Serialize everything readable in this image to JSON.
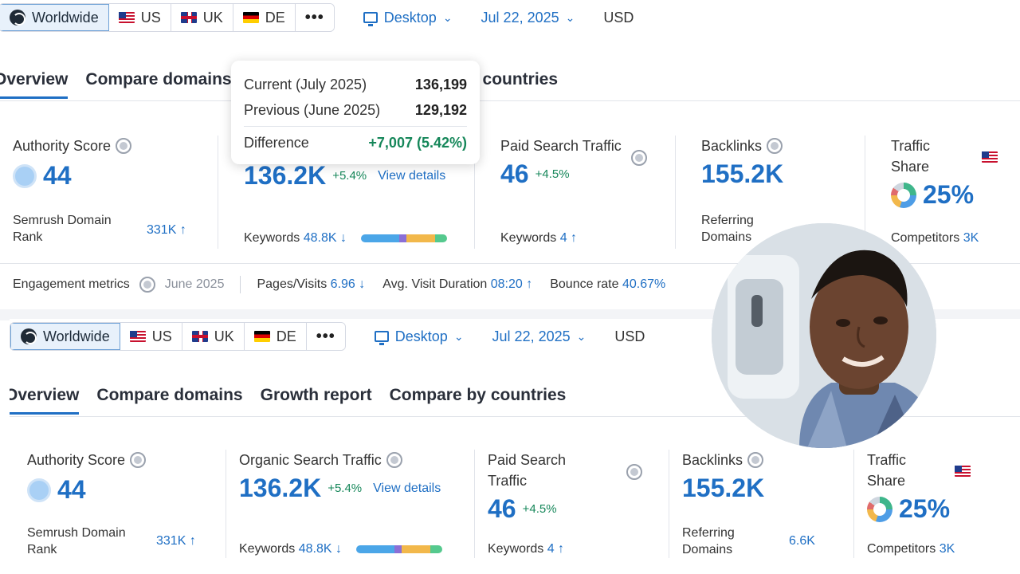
{
  "filters": {
    "worldwide": "Worldwide",
    "us": "US",
    "uk": "UK",
    "de": "DE",
    "more": "•••",
    "device": "Desktop",
    "date": "Jul 22, 2025",
    "currency": "USD"
  },
  "tabs": {
    "overview": "Overview",
    "compare_domains": "Compare domains",
    "growth_report": "Growth report",
    "compare_by_countries": "Compare by countries",
    "partial_countries": "y countries"
  },
  "tooltip": {
    "current_label": "Current (July 2025)",
    "current_value": "136,199",
    "previous_label": "Previous (June 2025)",
    "previous_value": "129,192",
    "difference_label": "Difference",
    "difference_value": "+7,007 (5.42%)"
  },
  "authority": {
    "title": "Authority Score",
    "value": "44",
    "rank_label": "Semrush Domain Rank",
    "rank_value": "331K ↑"
  },
  "organic": {
    "title": "Organic Search Traffic",
    "value": "136.2K",
    "delta": "+5.4%",
    "link": "View details",
    "keywords_label": "Keywords",
    "keywords_value": "48.8K ↓"
  },
  "paid": {
    "title": "Paid Search Traffic",
    "value": "46",
    "delta": "+4.5%",
    "keywords_label": "Keywords",
    "keywords_value": "4 ↑"
  },
  "backlinks": {
    "title": "Backlinks",
    "value": "155.2K",
    "referring_label": "Referring Domains",
    "referring_value": "6.6K"
  },
  "traffic_share": {
    "title": "Traffic Share",
    "value": "25%",
    "competitors_label": "Competitors",
    "competitors_value": "3K"
  },
  "engagement": {
    "label": "Engagement metrics",
    "period": "June 2025",
    "pages_label": "Pages/Visits",
    "pages_value": "6.96 ↓",
    "duration_label": "Avg. Visit Duration",
    "duration_value": "08:20 ↑",
    "bounce_label": "Bounce rate",
    "bounce_value": "40.67%"
  },
  "colors": {
    "accent": "#1f6fc4",
    "positive": "#16875a",
    "negative": "#d43a3a",
    "keywords_bar": [
      "#4ba6e8",
      "#8b6fd6",
      "#f2b84b",
      "#55c98e"
    ]
  }
}
